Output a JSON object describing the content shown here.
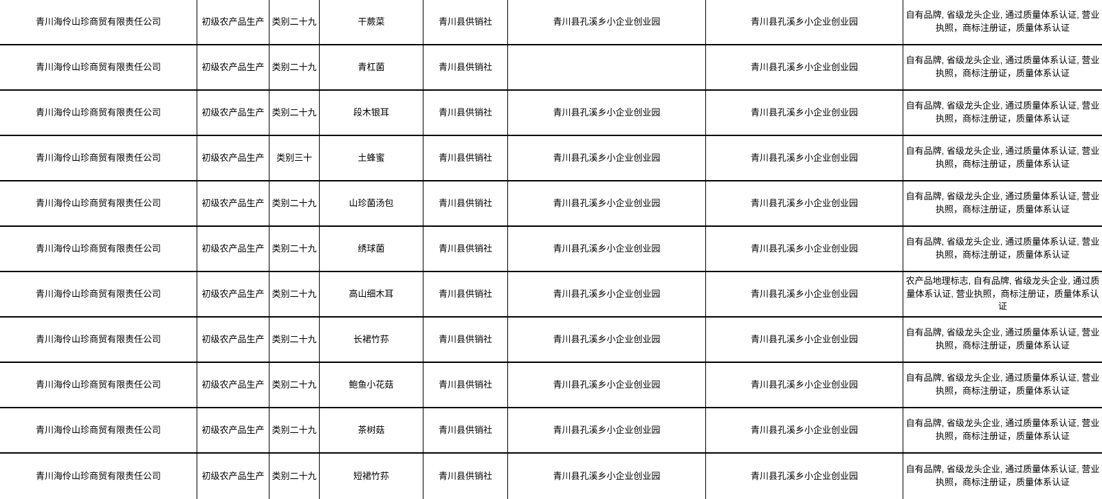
{
  "colors": {
    "background": "#ffffff",
    "border": "#000000",
    "text": "#000000"
  },
  "table": {
    "rows": [
      {
        "cells": [
          "青川海伶山珍商贸有限责任公司",
          "初级农产品生产",
          "类别二十九",
          "干蕨菜",
          "青川县供销社",
          "青川县孔溪乡小企业创业园",
          "青川县孔溪乡小企业创业园",
          "自有品牌, 省级龙头企业, 通过质量体系认证, 营业执照，商标注册证，质量体系认证"
        ]
      },
      {
        "cells": [
          "青川海伶山珍商贸有限责任公司",
          "初级农产品生产",
          "类别二十九",
          "青杠菌",
          "青川县供销社",
          "",
          "青川县孔溪乡小企业创业园",
          "自有品牌, 省级龙头企业, 通过质量体系认证, 营业执照，商标注册证，质量体系认证"
        ]
      },
      {
        "cells": [
          "青川海伶山珍商贸有限责任公司",
          "初级农产品生产",
          "类别二十九",
          "段木银耳",
          "青川县供销社",
          "青川县孔溪乡小企业创业园",
          "青川县孔溪乡小企业创业园",
          "自有品牌, 省级龙头企业, 通过质量体系认证, 营业执照，商标注册证，质量体系认证"
        ]
      },
      {
        "cells": [
          "青川海伶山珍商贸有限责任公司",
          "初级农产品生产",
          "类别三十",
          "土蜂蜜",
          "青川县供销社",
          "青川县孔溪乡小企业创业园",
          "青川县孔溪乡小企业创业园",
          "自有品牌, 省级龙头企业, 通过质量体系认证, 营业执照，商标注册证，质量体系认证"
        ]
      },
      {
        "cells": [
          "青川海伶山珍商贸有限责任公司",
          "初级农产品生产",
          "类别二十九",
          "山珍菌汤包",
          "青川县供销社",
          "青川县孔溪乡小企业创业园",
          "青川县孔溪乡小企业创业园",
          "自有品牌, 省级龙头企业, 通过质量体系认证, 营业执照，商标注册证，质量体系认证"
        ]
      },
      {
        "cells": [
          "青川海伶山珍商贸有限责任公司",
          "初级农产品生产",
          "类别二十九",
          "绣球菌",
          "青川县供销社",
          "青川县孔溪乡小企业创业园",
          "青川县孔溪乡小企业创业园",
          "自有品牌, 省级龙头企业, 通过质量体系认证, 营业执照，商标注册证，质量体系认证"
        ]
      },
      {
        "cells": [
          "青川海伶山珍商贸有限责任公司",
          "初级农产品生产",
          "类别二十九",
          "高山细木耳",
          "青川县供销社",
          "青川县孔溪乡小企业创业园",
          "青川县孔溪乡小企业创业园",
          "农产品地理标志, 自有品牌, 省级龙头企业, 通过质量体系认证, 营业执照，商标注册证，质量体系认证"
        ]
      },
      {
        "cells": [
          "青川海伶山珍商贸有限责任公司",
          "初级农产品生产",
          "类别二十九",
          "长裙竹荪",
          "青川县供销社",
          "青川县孔溪乡小企业创业园",
          "青川县孔溪乡小企业创业园",
          "自有品牌, 省级龙头企业, 通过质量体系认证, 营业执照，商标注册证，质量体系认证"
        ]
      },
      {
        "cells": [
          "青川海伶山珍商贸有限责任公司",
          "初级农产品生产",
          "类别二十九",
          "鲍鱼小花菇",
          "青川县供销社",
          "青川县孔溪乡小企业创业园",
          "青川县孔溪乡小企业创业园",
          "自有品牌, 省级龙头企业, 通过质量体系认证, 营业执照，商标注册证，质量体系认证"
        ]
      },
      {
        "cells": [
          "青川海伶山珍商贸有限责任公司",
          "初级农产品生产",
          "类别二十九",
          "茶树菇",
          "青川县供销社",
          "青川县孔溪乡小企业创业园",
          "青川县孔溪乡小企业创业园",
          "自有品牌, 省级龙头企业, 通过质量体系认证, 营业执照，商标注册证，质量体系认证"
        ]
      },
      {
        "cells": [
          "青川海伶山珍商贸有限责任公司",
          "初级农产品生产",
          "类别二十九",
          "短裙竹荪",
          "青川县供销社",
          "青川县孔溪乡小企业创业园",
          "青川县孔溪乡小企业创业园",
          "自有品牌, 省级龙头企业, 通过质量体系认证, 营业执照，商标注册证，质量体系认证"
        ]
      }
    ]
  }
}
